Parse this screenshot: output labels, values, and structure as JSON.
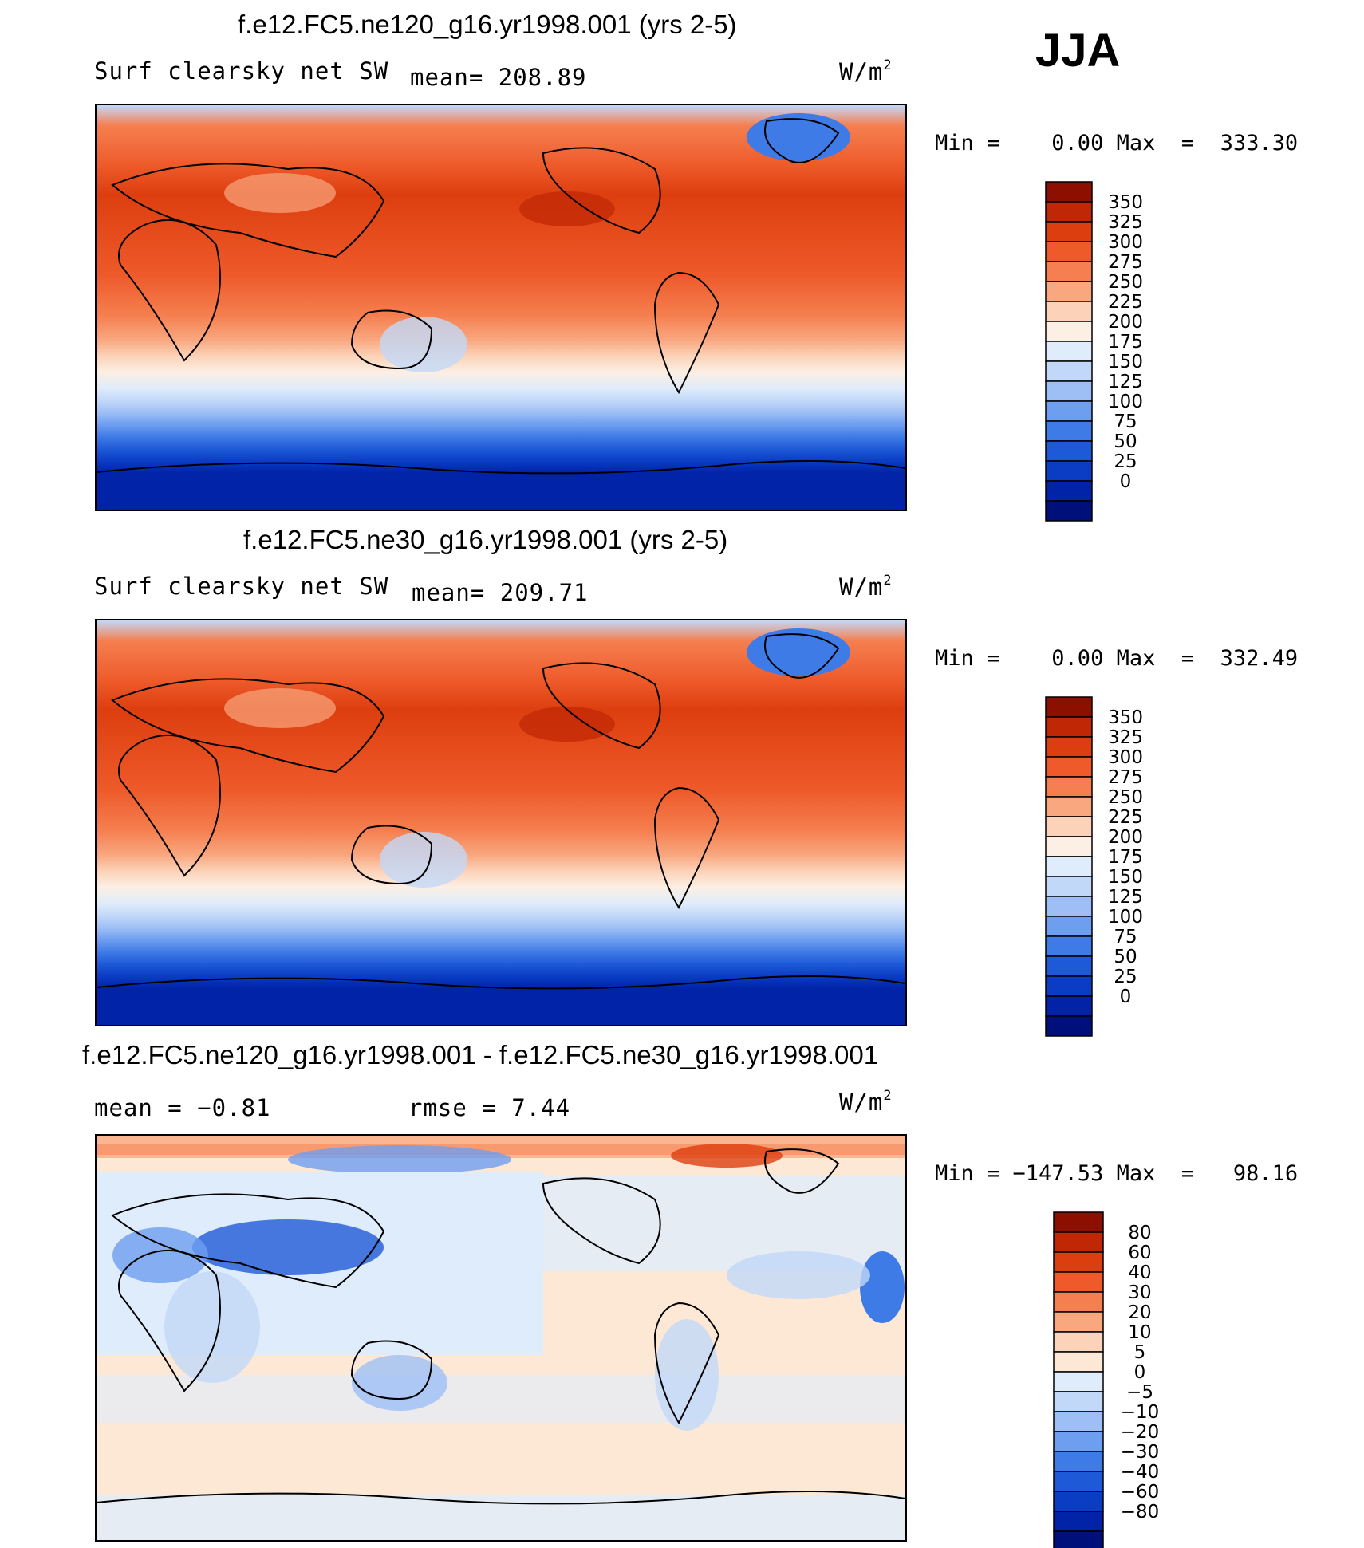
{
  "season": "JJA",
  "units_text": "W/m",
  "units_exp": "2",
  "colors": {
    "abs_scale": [
      "#00107a",
      "#0023a8",
      "#0a3cc4",
      "#1e5ad8",
      "#3f7be6",
      "#6e9ef0",
      "#9dbff5",
      "#c2d8f8",
      "#dfecfb",
      "#fcefe3",
      "#fcd2b8",
      "#f9a77f",
      "#f57f50",
      "#ee5a2a",
      "#dd3e0f",
      "#c02805",
      "#8c0f00"
    ],
    "diff_scale": [
      "#00107a",
      "#0023a8",
      "#0a3cc4",
      "#1e5ad8",
      "#3f7be6",
      "#6e9ef0",
      "#9dbff5",
      "#c2d8f8",
      "#dfecfb",
      "#fde8d6",
      "#fcd2b8",
      "#f9a77f",
      "#f57f50",
      "#ee5a2a",
      "#dd3e0f",
      "#c02805",
      "#8c0f00"
    ]
  },
  "panels": [
    {
      "title": "f.e12.FC5.ne120_g16.yr1998.001 (yrs 2-5)",
      "left_label": "Surf clearsky net SW",
      "mid_label": "mean=  208.89",
      "minmax": "Min =    0.00 Max  =  333.30",
      "colorbar_labels": [
        "350",
        "325",
        "300",
        "275",
        "250",
        "225",
        "200",
        "175",
        "150",
        "125",
        "100",
        "75",
        "50",
        "25",
        "0"
      ]
    },
    {
      "title": "f.e12.FC5.ne30_g16.yr1998.001 (yrs 2-5)",
      "left_label": "Surf clearsky net SW",
      "mid_label": "mean=  209.71",
      "minmax": "Min =    0.00 Max  =  332.49",
      "colorbar_labels": [
        "350",
        "325",
        "300",
        "275",
        "250",
        "225",
        "200",
        "175",
        "150",
        "125",
        "100",
        "75",
        "50",
        "25",
        "0"
      ]
    },
    {
      "title": "f.e12.FC5.ne120_g16.yr1998.001 - f.e12.FC5.ne30_g16.yr1998.001",
      "left_label": "mean =   −0.81",
      "mid_label": "rmse =    7.44",
      "minmax": "Min = −147.53 Max  =   98.16",
      "colorbar_labels": [
        "80",
        "60",
        "40",
        "30",
        "20",
        "10",
        "5",
        "0",
        "−5",
        "−10",
        "−20",
        "−30",
        "−40",
        "−60",
        "−80"
      ]
    }
  ],
  "chart_data": [
    {
      "type": "heatmap",
      "title": "f.e12.FC5.ne120_g16.yr1998.001 (yrs 2-5)",
      "variable": "Surf clearsky net SW",
      "units": "W/m2",
      "mean": 208.89,
      "min": 0.0,
      "max": 333.3,
      "contour_levels": [
        0,
        25,
        50,
        75,
        100,
        125,
        150,
        175,
        200,
        225,
        250,
        275,
        300,
        325,
        350
      ],
      "projection": "cylindrical equidistant, Pacific-centered"
    },
    {
      "type": "heatmap",
      "title": "f.e12.FC5.ne30_g16.yr1998.001 (yrs 2-5)",
      "variable": "Surf clearsky net SW",
      "units": "W/m2",
      "mean": 209.71,
      "min": 0.0,
      "max": 332.49,
      "contour_levels": [
        0,
        25,
        50,
        75,
        100,
        125,
        150,
        175,
        200,
        225,
        250,
        275,
        300,
        325,
        350
      ],
      "projection": "cylindrical equidistant, Pacific-centered"
    },
    {
      "type": "heatmap",
      "title": "f.e12.FC5.ne120_g16.yr1998.001 - f.e12.FC5.ne30_g16.yr1998.001",
      "units": "W/m2",
      "mean": -0.81,
      "rmse": 7.44,
      "min": -147.53,
      "max": 98.16,
      "contour_levels": [
        -80,
        -60,
        -40,
        -30,
        -20,
        -10,
        -5,
        0,
        5,
        10,
        20,
        30,
        40,
        60,
        80
      ],
      "projection": "cylindrical equidistant, Pacific-centered"
    }
  ]
}
